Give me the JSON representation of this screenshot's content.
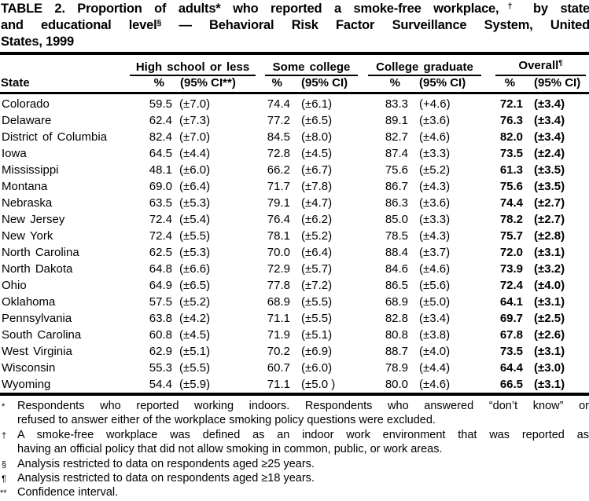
{
  "title": {
    "l1a": "TABLE 2. Proportion of adults* who reported a smoke-free workplace,",
    "l1sup": "†",
    "l1b": " by state",
    "l2a": "and educational level",
    "l2sup": "§",
    "l2b": " — Behavioral Risk Factor Surveillance System, United",
    "l3": "States, 1999"
  },
  "header": {
    "state_label": "State",
    "groups": [
      {
        "label": "High school or less",
        "sup": "",
        "pct": "%",
        "ci": "(95% CI**)"
      },
      {
        "label": "Some college",
        "sup": "",
        "pct": "%",
        "ci": "(95% CI)"
      },
      {
        "label": "College graduate",
        "sup": "",
        "pct": "%",
        "ci": "(95% CI)"
      },
      {
        "label": "Overall",
        "sup": "¶",
        "pct": "%",
        "ci": "(95% CI)"
      }
    ]
  },
  "table": {
    "rows": [
      {
        "state": "Colorado",
        "hs_pct": "59.5",
        "hs_ci": "(±7.0)",
        "sc_pct": "74.4",
        "sc_ci": "(±6.1)",
        "cg_pct": "83.3",
        "cg_ci": "(+4.6)",
        "ov_pct": "72.1",
        "ov_ci": "(±3.4)"
      },
      {
        "state": "Delaware",
        "hs_pct": "62.4",
        "hs_ci": "(±7.3)",
        "sc_pct": "77.2",
        "sc_ci": "(±6.5)",
        "cg_pct": "89.1",
        "cg_ci": "(±3.6)",
        "ov_pct": "76.3",
        "ov_ci": "(±3.4)"
      },
      {
        "state": "District of Columbia",
        "hs_pct": "82.4",
        "hs_ci": "(±7.0)",
        "sc_pct": "84.5",
        "sc_ci": "(±8.0)",
        "cg_pct": "82.7",
        "cg_ci": "(±4.6)",
        "ov_pct": "82.0",
        "ov_ci": "(±3.4)"
      },
      {
        "state": "Iowa",
        "hs_pct": "64.5",
        "hs_ci": "(±4.4)",
        "sc_pct": "72.8",
        "sc_ci": "(±4.5)",
        "cg_pct": "87.4",
        "cg_ci": "(±3.3)",
        "ov_pct": "73.5",
        "ov_ci": "(±2.4)"
      },
      {
        "state": "Mississippi",
        "hs_pct": "48.1",
        "hs_ci": "(±6.0)",
        "sc_pct": "66.2",
        "sc_ci": "(±6.7)",
        "cg_pct": "75.6",
        "cg_ci": "(±5.2)",
        "ov_pct": "61.3",
        "ov_ci": "(±3.5)"
      },
      {
        "state": "Montana",
        "hs_pct": "69.0",
        "hs_ci": "(±6.4)",
        "sc_pct": "71.7",
        "sc_ci": "(±7.8)",
        "cg_pct": "86.7",
        "cg_ci": "(±4.3)",
        "ov_pct": "75.6",
        "ov_ci": "(±3.5)"
      },
      {
        "state": "Nebraska",
        "hs_pct": "63.5",
        "hs_ci": "(±5.3)",
        "sc_pct": "79.1",
        "sc_ci": "(±4.7)",
        "cg_pct": "86.3",
        "cg_ci": "(±3.6)",
        "ov_pct": "74.4",
        "ov_ci": "(±2.7)"
      },
      {
        "state": "New Jersey",
        "hs_pct": "72.4",
        "hs_ci": "(±5.4)",
        "sc_pct": "76.4",
        "sc_ci": "(±6.2)",
        "cg_pct": "85.0",
        "cg_ci": "(±3.3)",
        "ov_pct": "78.2",
        "ov_ci": "(±2.7)"
      },
      {
        "state": "New York",
        "hs_pct": "72.4",
        "hs_ci": "(±5.5)",
        "sc_pct": "78.1",
        "sc_ci": "(±5.2)",
        "cg_pct": "78.5",
        "cg_ci": "(±4.3)",
        "ov_pct": "75.7",
        "ov_ci": "(±2.8)"
      },
      {
        "state": "North Carolina",
        "hs_pct": "62.5",
        "hs_ci": "(±5.3)",
        "sc_pct": "70.0",
        "sc_ci": "(±6.4)",
        "cg_pct": "88.4",
        "cg_ci": "(±3.7)",
        "ov_pct": "72.0",
        "ov_ci": "(±3.1)"
      },
      {
        "state": "North Dakota",
        "hs_pct": "64.8",
        "hs_ci": "(±6.6)",
        "sc_pct": "72.9",
        "sc_ci": "(±5.7)",
        "cg_pct": "84.6",
        "cg_ci": "(±4.6)",
        "ov_pct": "73.9",
        "ov_ci": "(±3.2)"
      },
      {
        "state": "Ohio",
        "hs_pct": "64.9",
        "hs_ci": "(±6.5)",
        "sc_pct": "77.8",
        "sc_ci": "(±7.2)",
        "cg_pct": "86.5",
        "cg_ci": "(±5.6)",
        "ov_pct": "72.4",
        "ov_ci": "(±4.0)"
      },
      {
        "state": "Oklahoma",
        "hs_pct": "57.5",
        "hs_ci": "(±5.2)",
        "sc_pct": "68.9",
        "sc_ci": "(±5.5)",
        "cg_pct": "68.9",
        "cg_ci": "(±5.0)",
        "ov_pct": "64.1",
        "ov_ci": "(±3.1)"
      },
      {
        "state": "Pennsylvania",
        "hs_pct": "63.8",
        "hs_ci": "(±4.2)",
        "sc_pct": "71.1",
        "sc_ci": "(±5.5)",
        "cg_pct": "82.8",
        "cg_ci": "(±3.4)",
        "ov_pct": "69.7",
        "ov_ci": "(±2.5)"
      },
      {
        "state": "South Carolina",
        "hs_pct": "60.8",
        "hs_ci": "(±4.5)",
        "sc_pct": "71.9",
        "sc_ci": "(±5.1)",
        "cg_pct": "80.8",
        "cg_ci": "(±3.8)",
        "ov_pct": "67.8",
        "ov_ci": "(±2.6)"
      },
      {
        "state": "West Virginia",
        "hs_pct": "62.9",
        "hs_ci": "(±5.1)",
        "sc_pct": "70.2",
        "sc_ci": "(±6.9)",
        "cg_pct": "88.7",
        "cg_ci": "(±4.0)",
        "ov_pct": "73.5",
        "ov_ci": "(±3.1)"
      },
      {
        "state": "Wisconsin",
        "hs_pct": "55.3",
        "hs_ci": "(±5.5)",
        "sc_pct": "60.7",
        "sc_ci": "(±6.0)",
        "cg_pct": "78.9",
        "cg_ci": "(±4.4)",
        "ov_pct": "64.4",
        "ov_ci": "(±3.0)"
      },
      {
        "state": "Wyoming",
        "hs_pct": "54.4",
        "hs_ci": "(±5.9)",
        "sc_pct": "71.1",
        "sc_ci": "(±5.0 )",
        "cg_pct": "80.0",
        "cg_ci": "(±4.6)",
        "ov_pct": "66.5",
        "ov_ci": "(±3.1)"
      }
    ]
  },
  "footnotes": [
    {
      "marker": "*",
      "wide": false,
      "lines": [
        "Respondents who reported working indoors. Respondents who answered “don’t know” or",
        "refused to answer either of the workplace smoking policy questions were excluded."
      ]
    },
    {
      "marker": "†",
      "wide": false,
      "lines": [
        "A smoke-free workplace was defined as an indoor work environment that was reported as",
        "having an official policy that did not allow smoking in common, public, or work areas."
      ]
    },
    {
      "marker": "§",
      "wide": false,
      "lines": [
        "Analysis restricted to data on respondents aged ≥25 years."
      ]
    },
    {
      "marker": "¶",
      "wide": false,
      "lines": [
        "Analysis restricted to data on respondents aged ≥18 years."
      ]
    },
    {
      "marker": "**",
      "wide": true,
      "lines": [
        "Confidence interval."
      ]
    }
  ]
}
